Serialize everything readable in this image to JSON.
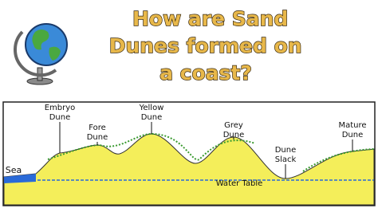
{
  "header": {
    "title_lines": [
      "How are Sand",
      "Dunes formed on",
      "a coast?"
    ]
  },
  "diagram": {
    "labels": [
      {
        "lines": [
          "Embryo",
          "Dune"
        ]
      },
      {
        "lines": [
          "Fore",
          "Dune"
        ]
      },
      {
        "lines": [
          "Yellow",
          "Dune"
        ]
      },
      {
        "lines": [
          "Grey",
          "Dune"
        ]
      },
      {
        "lines": [
          "Dune",
          "Slack"
        ]
      },
      {
        "lines": [
          "Mature",
          "Dune"
        ]
      }
    ],
    "sea": "Sea",
    "water_table": "Water Table"
  }
}
